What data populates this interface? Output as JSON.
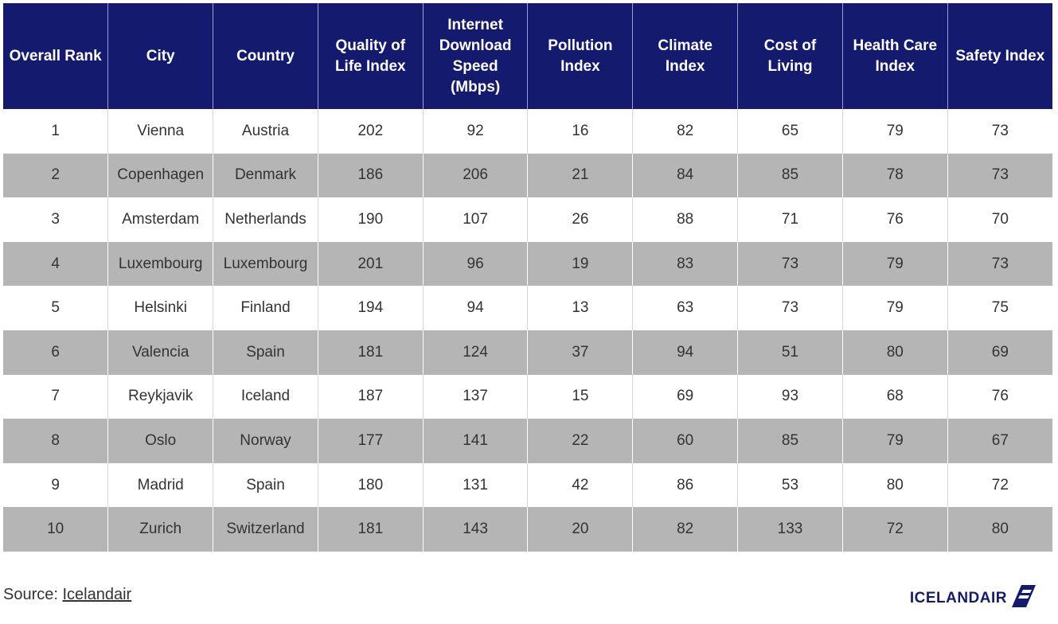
{
  "chart_data": {
    "type": "table",
    "columns": [
      "Overall Rank",
      "City",
      "Country",
      "Quality of Life Index",
      "Internet Download Speed (Mbps)",
      "Pollution Index",
      "Climate Index",
      "Cost of Living",
      "Health Care Index",
      "Safety Index"
    ],
    "rows": [
      [
        "1",
        "Vienna",
        "Austria",
        "202",
        "92",
        "16",
        "82",
        "65",
        "79",
        "73"
      ],
      [
        "2",
        "Copenhagen",
        "Denmark",
        "186",
        "206",
        "21",
        "84",
        "85",
        "78",
        "73"
      ],
      [
        "3",
        "Amsterdam",
        "Netherlands",
        "190",
        "107",
        "26",
        "88",
        "71",
        "76",
        "70"
      ],
      [
        "4",
        "Luxembourg",
        "Luxembourg",
        "201",
        "96",
        "19",
        "83",
        "73",
        "79",
        "73"
      ],
      [
        "5",
        "Helsinki",
        "Finland",
        "194",
        "94",
        "13",
        "63",
        "73",
        "79",
        "75"
      ],
      [
        "6",
        "Valencia",
        "Spain",
        "181",
        "124",
        "37",
        "94",
        "51",
        "80",
        "69"
      ],
      [
        "7",
        "Reykjavik",
        "Iceland",
        "187",
        "137",
        "15",
        "69",
        "93",
        "68",
        "76"
      ],
      [
        "8",
        "Oslo",
        "Norway",
        "177",
        "141",
        "22",
        "60",
        "85",
        "79",
        "67"
      ],
      [
        "9",
        "Madrid",
        "Spain",
        "180",
        "131",
        "42",
        "86",
        "53",
        "80",
        "72"
      ],
      [
        "10",
        "Zurich",
        "Switzerland",
        "181",
        "143",
        "20",
        "82",
        "133",
        "72",
        "80"
      ]
    ]
  },
  "colors": {
    "header_bg": "#141a6e",
    "header_text": "#ffffff",
    "row_alt_bg": "#b5b5b5",
    "row_bg": "#ffffff",
    "body_text": "#333333",
    "logo": "#141a6e"
  },
  "footer": {
    "source_prefix": "Source: ",
    "source_link": "Icelandair",
    "logo_text": "ICELANDAIR",
    "logo_icon": "icelandair-wing-icon"
  }
}
